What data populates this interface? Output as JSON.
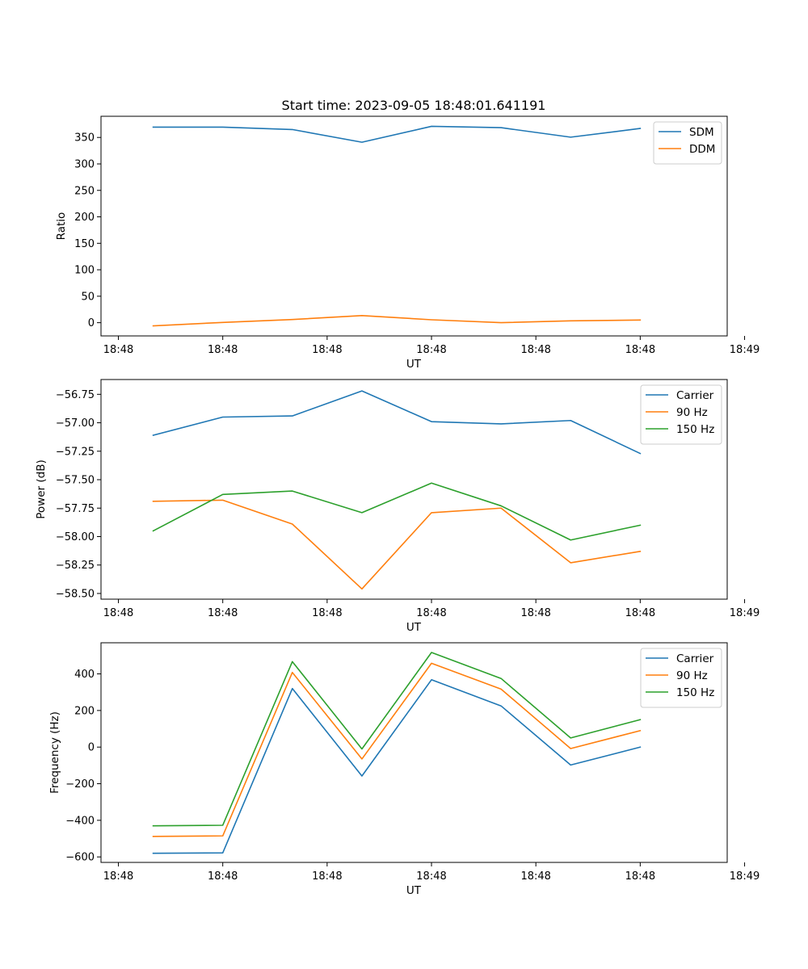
{
  "figure": {
    "title": "Start time: 2023-09-05 18:48:01.641191"
  },
  "colors": {
    "blue": "#1f77b4",
    "orange": "#ff7f0e",
    "green": "#2ca02c"
  },
  "chart_data": [
    {
      "type": "line",
      "title": "Start time: 2023-09-05 18:48:01.641191",
      "xlabel": "UT",
      "ylabel": "Ratio",
      "x": [
        1,
        2,
        3,
        4,
        5,
        6,
        7,
        8
      ],
      "xlim": [
        0.25,
        9.25
      ],
      "x_ticks": [
        0.5,
        2,
        3.5,
        5,
        6.5,
        8,
        9.5
      ],
      "x_tick_labels": [
        "18:48",
        "18:48",
        "18:48",
        "18:48",
        "18:48",
        "18:48",
        "18:49"
      ],
      "ylim": [
        -25,
        390
      ],
      "y_ticks": [
        0,
        50,
        100,
        150,
        200,
        250,
        300,
        350
      ],
      "y_tick_labels": [
        "0",
        "50",
        "100",
        "150",
        "200",
        "250",
        "300",
        "350"
      ],
      "legend_position": "top-right",
      "series": [
        {
          "name": "SDM",
          "color": "#1f77b4",
          "values": [
            369.5,
            369.5,
            365,
            341,
            371,
            368.5,
            350.5,
            367
          ]
        },
        {
          "name": "DDM",
          "color": "#ff7f0e",
          "values": [
            -6,
            0.5,
            6,
            13.5,
            5.5,
            0,
            3.5,
            5
          ]
        }
      ]
    },
    {
      "type": "line",
      "title": "",
      "xlabel": "UT",
      "ylabel": "Power (dB)",
      "x": [
        1,
        2,
        3,
        4,
        5,
        6,
        7,
        8
      ],
      "xlim": [
        0.25,
        9.25
      ],
      "x_ticks": [
        0.5,
        2,
        3.5,
        5,
        6.5,
        8,
        9.5
      ],
      "x_tick_labels": [
        "18:48",
        "18:48",
        "18:48",
        "18:48",
        "18:48",
        "18:48",
        "18:49"
      ],
      "ylim": [
        -58.55,
        -56.62
      ],
      "y_ticks": [
        -56.75,
        -57.0,
        -57.25,
        -57.5,
        -57.75,
        -58.0,
        -58.25,
        -58.5
      ],
      "y_tick_labels": [
        "−56.75",
        "−57.00",
        "−57.25",
        "−57.50",
        "−57.75",
        "−58.00",
        "−58.25",
        "−58.50"
      ],
      "legend_position": "top-right",
      "series": [
        {
          "name": "Carrier",
          "color": "#1f77b4",
          "values": [
            -57.11,
            -56.95,
            -56.94,
            -56.72,
            -56.99,
            -57.01,
            -56.98,
            -57.27
          ]
        },
        {
          "name": "90 Hz",
          "color": "#ff7f0e",
          "values": [
            -57.69,
            -57.68,
            -57.89,
            -58.46,
            -57.79,
            -57.75,
            -58.23,
            -58.13
          ]
        },
        {
          "name": "150 Hz",
          "color": "#2ca02c",
          "values": [
            -57.95,
            -57.63,
            -57.6,
            -57.79,
            -57.53,
            -57.73,
            -58.03,
            -57.9
          ]
        }
      ]
    },
    {
      "type": "line",
      "title": "",
      "xlabel": "UT",
      "ylabel": "Frequency (Hz)",
      "x": [
        1,
        2,
        3,
        4,
        5,
        6,
        7,
        8
      ],
      "xlim": [
        0.25,
        9.25
      ],
      "x_ticks": [
        0.5,
        2,
        3.5,
        5,
        6.5,
        8,
        9.5
      ],
      "x_tick_labels": [
        "18:48",
        "18:48",
        "18:48",
        "18:48",
        "18:48",
        "18:48",
        "18:49"
      ],
      "ylim": [
        -630,
        570
      ],
      "y_ticks": [
        -600,
        -400,
        -200,
        0,
        200,
        400
      ],
      "y_tick_labels": [
        "−600",
        "−400",
        "−200",
        "0",
        "200",
        "400"
      ],
      "legend_position": "top-right",
      "series": [
        {
          "name": "Carrier",
          "color": "#1f77b4",
          "values": [
            -580,
            -578,
            320,
            -158,
            368,
            225,
            -98,
            0
          ]
        },
        {
          "name": "90 Hz",
          "color": "#ff7f0e",
          "values": [
            -488,
            -485,
            408,
            -65,
            458,
            317,
            -8,
            90
          ]
        },
        {
          "name": "150 Hz",
          "color": "#2ca02c",
          "values": [
            -430,
            -427,
            467,
            -10,
            517,
            375,
            50,
            150
          ]
        }
      ]
    }
  ]
}
